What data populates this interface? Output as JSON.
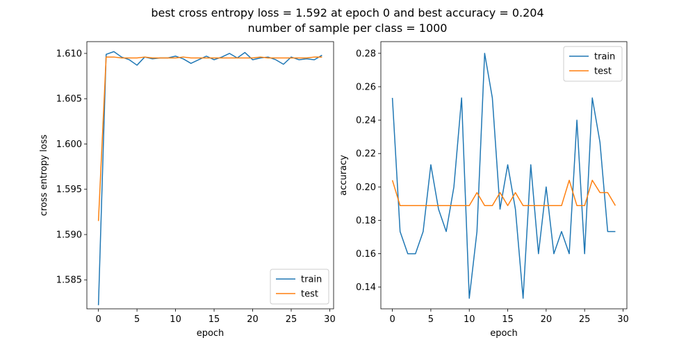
{
  "figure": {
    "title_line1": "best cross entropy loss = 1.592 at epoch 0 and best accuracy = 0.204",
    "title_line2": "number of sample per class = 1000"
  },
  "colors": {
    "train": "#1f77b4",
    "test": "#ff7f0e"
  },
  "chart_data": [
    {
      "type": "line",
      "xlabel": "epoch",
      "ylabel": "cross entropy loss",
      "xlim": [
        -1.5,
        30.5
      ],
      "ylim": [
        1.5818,
        1.6113
      ],
      "xticks": [
        0,
        5,
        10,
        15,
        20,
        25,
        30
      ],
      "yticks": [
        1.585,
        1.59,
        1.595,
        1.6,
        1.605,
        1.61
      ],
      "ytick_labels": [
        "1.585",
        "1.590",
        "1.595",
        "1.600",
        "1.605",
        "1.610"
      ],
      "legend": "lower right",
      "x": [
        0,
        1,
        2,
        3,
        4,
        5,
        6,
        7,
        8,
        9,
        10,
        11,
        12,
        13,
        14,
        15,
        16,
        17,
        18,
        19,
        20,
        21,
        22,
        23,
        24,
        25,
        26,
        27,
        28,
        29
      ],
      "series": [
        {
          "name": "train",
          "color": "#1f77b4",
          "values": [
            1.5822,
            1.6099,
            1.6102,
            1.6096,
            1.6093,
            1.6087,
            1.6096,
            1.6094,
            1.6095,
            1.6095,
            1.6097,
            1.6094,
            1.6089,
            1.6093,
            1.6097,
            1.6093,
            1.6096,
            1.61,
            1.6095,
            1.6101,
            1.6093,
            1.6095,
            1.6096,
            1.6093,
            1.6088,
            1.6096,
            1.6093,
            1.6094,
            1.6093,
            1.6098
          ]
        },
        {
          "name": "test",
          "color": "#ff7f0e",
          "values": [
            1.5915,
            1.6096,
            1.6096,
            1.6095,
            1.6095,
            1.6095,
            1.6096,
            1.6095,
            1.6095,
            1.6095,
            1.6095,
            1.6096,
            1.6095,
            1.6095,
            1.6095,
            1.6095,
            1.6095,
            1.6095,
            1.6095,
            1.6095,
            1.6095,
            1.6096,
            1.6095,
            1.6095,
            1.6095,
            1.6095,
            1.6095,
            1.6095,
            1.6096,
            1.6096
          ]
        }
      ]
    },
    {
      "type": "line",
      "xlabel": "epoch",
      "ylabel": "accuracy",
      "xlim": [
        -1.5,
        30.5
      ],
      "ylim": [
        0.127,
        0.287
      ],
      "xticks": [
        0,
        5,
        10,
        15,
        20,
        25,
        30
      ],
      "yticks": [
        0.14,
        0.16,
        0.18,
        0.2,
        0.22,
        0.24,
        0.26,
        0.28
      ],
      "ytick_labels": [
        "0.14",
        "0.16",
        "0.18",
        "0.20",
        "0.22",
        "0.24",
        "0.26",
        "0.28"
      ],
      "legend": "upper right",
      "x": [
        0,
        1,
        2,
        3,
        4,
        5,
        6,
        7,
        8,
        9,
        10,
        11,
        12,
        13,
        14,
        15,
        16,
        17,
        18,
        19,
        20,
        21,
        22,
        23,
        24,
        25,
        26,
        27,
        28,
        29
      ],
      "series": [
        {
          "name": "train",
          "color": "#1f77b4",
          "values": [
            0.2533,
            0.1733,
            0.16,
            0.16,
            0.1733,
            0.2133,
            0.1867,
            0.1733,
            0.2,
            0.2533,
            0.1333,
            0.1733,
            0.28,
            0.2533,
            0.1867,
            0.2133,
            0.1867,
            0.1333,
            0.2133,
            0.16,
            0.2,
            0.16,
            0.1733,
            0.16,
            0.24,
            0.16,
            0.2533,
            0.2267,
            0.1733,
            0.1733
          ]
        },
        {
          "name": "test",
          "color": "#ff7f0e",
          "values": [
            0.204,
            0.1888,
            0.1888,
            0.1888,
            0.1888,
            0.1888,
            0.1888,
            0.1888,
            0.1888,
            0.1888,
            0.1888,
            0.1966,
            0.1888,
            0.1888,
            0.1966,
            0.1888,
            0.1966,
            0.1888,
            0.1888,
            0.1888,
            0.1888,
            0.1888,
            0.1888,
            0.204,
            0.1888,
            0.1888,
            0.204,
            0.1966,
            0.1966,
            0.1888
          ]
        }
      ]
    }
  ]
}
